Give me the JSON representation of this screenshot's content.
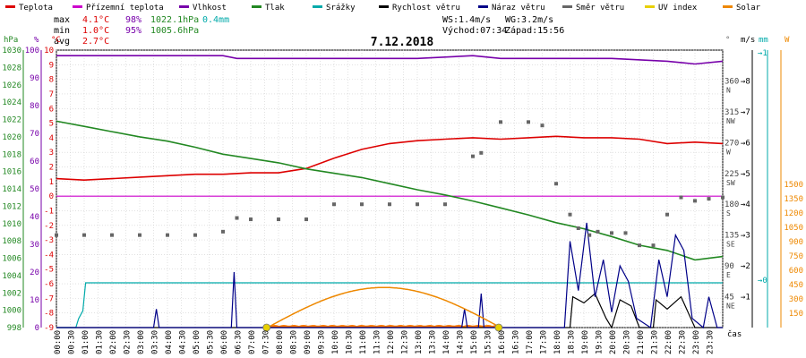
{
  "legend": [
    {
      "label": "Teplota",
      "color": "#dd0000"
    },
    {
      "label": "Přízemní teplota",
      "color": "#cc00cc"
    },
    {
      "label": "Vlhkost",
      "color": "#7700aa"
    },
    {
      "label": "Tlak",
      "color": "#228822"
    },
    {
      "label": "Srážky",
      "color": "#00aaaa"
    },
    {
      "label": "Rychlost větru",
      "color": "#000000"
    },
    {
      "label": "Náraz větru",
      "color": "#000088"
    },
    {
      "label": "Směr větru",
      "color": "#666666"
    },
    {
      "label": "UV index",
      "color": "#e8d000"
    },
    {
      "label": "Solar",
      "color": "#ee8800"
    }
  ],
  "stats": {
    "max_label": "max",
    "max_temp": "4.1°C",
    "max_hum": "98%",
    "max_press": "1022.1hPa",
    "max_rain": "0.4mm",
    "min_label": "min",
    "min_temp": "1.0°C",
    "min_hum": "95%",
    "min_press": "1005.6hPa",
    "avg_label": "avg",
    "avg_temp": "2.7°C",
    "ws": "WS:1.4m/s",
    "wg": "WG:3.2m/s",
    "sunrise": "Východ:07:34",
    "sunset": "Západ:15:56"
  },
  "chart_data": {
    "type": "line",
    "title": "7.12.2018",
    "axis_units": {
      "pressure": "hPa",
      "humidity": "%",
      "temperature": "°C",
      "direction": "°",
      "wind": "m/s",
      "rain": "mm",
      "solar": "W"
    },
    "xlabel": "čas",
    "x_ticks": [
      "00:00",
      "00:30",
      "01:00",
      "01:30",
      "02:00",
      "02:30",
      "03:00",
      "03:30",
      "04:00",
      "04:30",
      "05:00",
      "05:30",
      "06:00",
      "06:30",
      "07:00",
      "07:30",
      "08:00",
      "08:30",
      "09:00",
      "09:30",
      "10:00",
      "10:30",
      "11:00",
      "11:30",
      "12:00",
      "12:30",
      "13:00",
      "13:30",
      "14:00",
      "14:30",
      "15:00",
      "15:30",
      "16:00",
      "16:30",
      "17:00",
      "17:30",
      "18:00",
      "18:30",
      "19:00",
      "19:30",
      "20:00",
      "20:30",
      "21:00",
      "21:30",
      "22:00",
      "22:30",
      "23:00",
      "23:30"
    ],
    "temp_ticks": [
      "10",
      "9",
      "8",
      "7",
      "6",
      "5",
      "4",
      "3",
      "2",
      "1",
      "0",
      "-1",
      "-2",
      "-3",
      "-4",
      "-5",
      "-6",
      "-7",
      "-8",
      "-9"
    ],
    "temp_range": [
      -9,
      10
    ],
    "pressure_ticks": [
      "1030",
      "1028",
      "1026",
      "1024",
      "1022",
      "1020",
      "1018",
      "1016",
      "1014",
      "1012",
      "1010",
      "1008",
      "1006",
      "1004",
      "1002",
      "1000",
      "998"
    ],
    "pressure_range": [
      998,
      1030
    ],
    "humidity_ticks": [
      "100",
      "90",
      "80",
      "70",
      "60",
      "50",
      "40",
      "30",
      "20",
      "10",
      "0"
    ],
    "direction_ticks": [
      {
        "deg": 360,
        "label": "360",
        "dir": "N"
      },
      {
        "deg": 315,
        "label": "315",
        "dir": "NW"
      },
      {
        "deg": 270,
        "label": "270",
        "dir": "W"
      },
      {
        "deg": 225,
        "label": "225",
        "dir": "SW"
      },
      {
        "deg": 180,
        "label": "180",
        "dir": "S"
      },
      {
        "deg": 135,
        "label": "135",
        "dir": "SE"
      },
      {
        "deg": 90,
        "label": "90",
        "dir": "E"
      },
      {
        "deg": 45,
        "label": "45",
        "dir": "NE"
      }
    ],
    "wind_ticks": [
      "8",
      "7",
      "6",
      "5",
      "4",
      "3",
      "2",
      "1"
    ],
    "rain_ticks": [
      "1",
      "0"
    ],
    "solar_ticks": [
      "1500",
      "1350",
      "1200",
      "1050",
      "900",
      "750",
      "600",
      "450",
      "300",
      "150"
    ],
    "series": [
      {
        "name": "Teplota",
        "axis": "temperature",
        "color": "#dd0000",
        "points": [
          [
            0,
            1.2
          ],
          [
            1,
            1.1
          ],
          [
            2,
            1.2
          ],
          [
            3,
            1.3
          ],
          [
            4,
            1.4
          ],
          [
            5,
            1.5
          ],
          [
            6,
            1.5
          ],
          [
            7,
            1.6
          ],
          [
            8,
            1.6
          ],
          [
            9,
            1.9
          ],
          [
            10,
            2.6
          ],
          [
            11,
            3.2
          ],
          [
            12,
            3.6
          ],
          [
            13,
            3.8
          ],
          [
            14,
            3.9
          ],
          [
            15,
            4.0
          ],
          [
            16,
            3.9
          ],
          [
            17,
            4.0
          ],
          [
            18,
            4.1
          ],
          [
            19,
            4.0
          ],
          [
            20,
            4.0
          ],
          [
            21,
            3.9
          ],
          [
            22,
            3.6
          ],
          [
            23,
            3.7
          ],
          [
            24,
            3.6
          ]
        ]
      },
      {
        "name": "Přízemní teplota",
        "axis": "temperature",
        "color": "#cc00cc",
        "points": [
          [
            0,
            0
          ],
          [
            24,
            0
          ]
        ]
      },
      {
        "name": "Vlhkost",
        "axis": "humidity",
        "color": "#7700aa",
        "points": [
          [
            0,
            98
          ],
          [
            6,
            98
          ],
          [
            6.5,
            97
          ],
          [
            13,
            97
          ],
          [
            15,
            98
          ],
          [
            16,
            97
          ],
          [
            20,
            97
          ],
          [
            22,
            96
          ],
          [
            23,
            95
          ],
          [
            24,
            96
          ]
        ]
      },
      {
        "name": "Tlak",
        "axis": "pressure",
        "color": "#228822",
        "points": [
          [
            0,
            1021.8
          ],
          [
            1,
            1021.2
          ],
          [
            2,
            1020.6
          ],
          [
            3,
            1020
          ],
          [
            4,
            1019.5
          ],
          [
            5,
            1018.8
          ],
          [
            6,
            1018.0
          ],
          [
            7,
            1017.5
          ],
          [
            8,
            1017.0
          ],
          [
            9,
            1016.3
          ],
          [
            10,
            1015.8
          ],
          [
            11,
            1015.3
          ],
          [
            12,
            1014.6
          ],
          [
            13,
            1013.9
          ],
          [
            14,
            1013.3
          ],
          [
            15,
            1012.6
          ],
          [
            16,
            1011.8
          ],
          [
            17,
            1011.0
          ],
          [
            18,
            1010.1
          ],
          [
            19,
            1009.4
          ],
          [
            20,
            1008.5
          ],
          [
            21,
            1007.5
          ],
          [
            22,
            1006.9
          ],
          [
            23,
            1005.8
          ],
          [
            24,
            1006.2
          ]
        ]
      },
      {
        "name": "Srážky",
        "axis": "rain",
        "color": "#00aaaa",
        "points": [
          [
            0,
            0
          ],
          [
            0.7,
            0
          ],
          [
            0.8,
            0.08
          ],
          [
            0.95,
            0.15
          ],
          [
            1.05,
            0.4
          ],
          [
            24,
            0.4
          ]
        ]
      },
      {
        "name": "Rychlost větru",
        "axis": "wind",
        "color": "#000000",
        "points": [
          [
            0,
            0
          ],
          [
            18.5,
            0
          ],
          [
            18.6,
            1
          ],
          [
            19,
            0.8
          ],
          [
            19.4,
            1.1
          ],
          [
            19.8,
            0.3
          ],
          [
            20,
            0
          ],
          [
            20.3,
            0.9
          ],
          [
            20.7,
            0.7
          ],
          [
            21,
            0
          ],
          [
            21.5,
            0
          ],
          [
            21.6,
            0.9
          ],
          [
            22,
            0.6
          ],
          [
            22.5,
            1.0
          ],
          [
            23,
            0
          ],
          [
            24,
            0
          ]
        ]
      },
      {
        "name": "Náraz větru",
        "axis": "wind",
        "color": "#000088",
        "points": [
          [
            0,
            0
          ],
          [
            3.5,
            0
          ],
          [
            3.6,
            0.6
          ],
          [
            3.7,
            0
          ],
          [
            6.3,
            0
          ],
          [
            6.4,
            1.8
          ],
          [
            6.5,
            0
          ],
          [
            14.6,
            0
          ],
          [
            14.7,
            0.6
          ],
          [
            14.8,
            0
          ],
          [
            15.2,
            0
          ],
          [
            15.3,
            1.1
          ],
          [
            15.4,
            0
          ],
          [
            18.3,
            0
          ],
          [
            18.5,
            2.8
          ],
          [
            18.8,
            1.2
          ],
          [
            19.1,
            3.4
          ],
          [
            19.4,
            1.0
          ],
          [
            19.7,
            2.2
          ],
          [
            20.0,
            0.5
          ],
          [
            20.3,
            2.0
          ],
          [
            20.6,
            1.5
          ],
          [
            20.9,
            0.3
          ],
          [
            21.4,
            0
          ],
          [
            21.7,
            2.2
          ],
          [
            22.0,
            1.0
          ],
          [
            22.3,
            3.0
          ],
          [
            22.6,
            2.5
          ],
          [
            22.9,
            0.3
          ],
          [
            23.3,
            0
          ],
          [
            23.5,
            1.0
          ],
          [
            23.8,
            0
          ],
          [
            24,
            0
          ]
        ]
      },
      {
        "name": "Solar",
        "axis": "solar",
        "color": "#ee8800",
        "points": [
          [
            7.6,
            0
          ],
          [
            8.5,
            150
          ],
          [
            9.5,
            280
          ],
          [
            10.5,
            370
          ],
          [
            11.5,
            420
          ],
          [
            12.5,
            410
          ],
          [
            13.5,
            360
          ],
          [
            14.5,
            270
          ],
          [
            15.5,
            120
          ],
          [
            16,
            0
          ]
        ]
      },
      {
        "name": "UV index",
        "axis": "solar",
        "color": "#e8d000",
        "points": [
          [
            7.57,
            0
          ],
          [
            15.93,
            0
          ]
        ]
      }
    ],
    "wind_direction": [
      [
        0,
        135
      ],
      [
        1,
        135
      ],
      [
        2,
        135
      ],
      [
        3,
        135
      ],
      [
        4,
        135
      ],
      [
        5,
        135
      ],
      [
        6,
        140
      ],
      [
        6.5,
        160
      ],
      [
        7,
        158
      ],
      [
        8,
        158
      ],
      [
        9,
        158
      ],
      [
        10,
        180
      ],
      [
        11,
        180
      ],
      [
        12,
        180
      ],
      [
        13,
        180
      ],
      [
        14,
        180
      ],
      [
        15,
        250
      ],
      [
        15.3,
        255
      ],
      [
        16,
        300
      ],
      [
        17,
        300
      ],
      [
        17.5,
        295
      ],
      [
        18,
        210
      ],
      [
        18.5,
        165
      ],
      [
        18.8,
        145
      ],
      [
        19.2,
        135
      ],
      [
        19.5,
        140
      ],
      [
        20,
        138
      ],
      [
        20.5,
        138
      ],
      [
        21,
        120
      ],
      [
        21.5,
        120
      ],
      [
        22,
        165
      ],
      [
        22.5,
        190
      ],
      [
        23,
        185
      ],
      [
        23.5,
        188
      ],
      [
        24,
        190
      ]
    ]
  }
}
